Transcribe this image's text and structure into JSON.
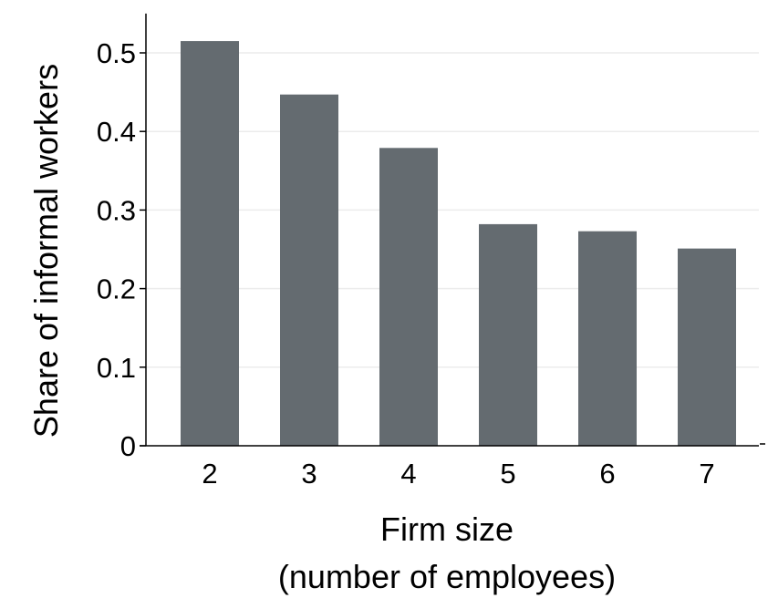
{
  "chart_data": {
    "type": "bar",
    "categories": [
      "2",
      "3",
      "4",
      "5",
      "6",
      "7"
    ],
    "values": [
      0.515,
      0.447,
      0.379,
      0.282,
      0.273,
      0.251
    ],
    "title": "",
    "xlabel_lines": [
      "Firm size",
      "(number of employees)"
    ],
    "ylabel": "Share of informal workers",
    "ylim": [
      0,
      0.55
    ],
    "yticks": [
      0,
      0.1,
      0.2,
      0.3,
      0.4,
      0.5
    ],
    "ytick_labels": [
      "0",
      "0.1",
      "0.2",
      "0.3",
      "0.4",
      "0.5"
    ],
    "grid": true,
    "bar_color": "#646b70",
    "grid_color": "#ececec"
  }
}
